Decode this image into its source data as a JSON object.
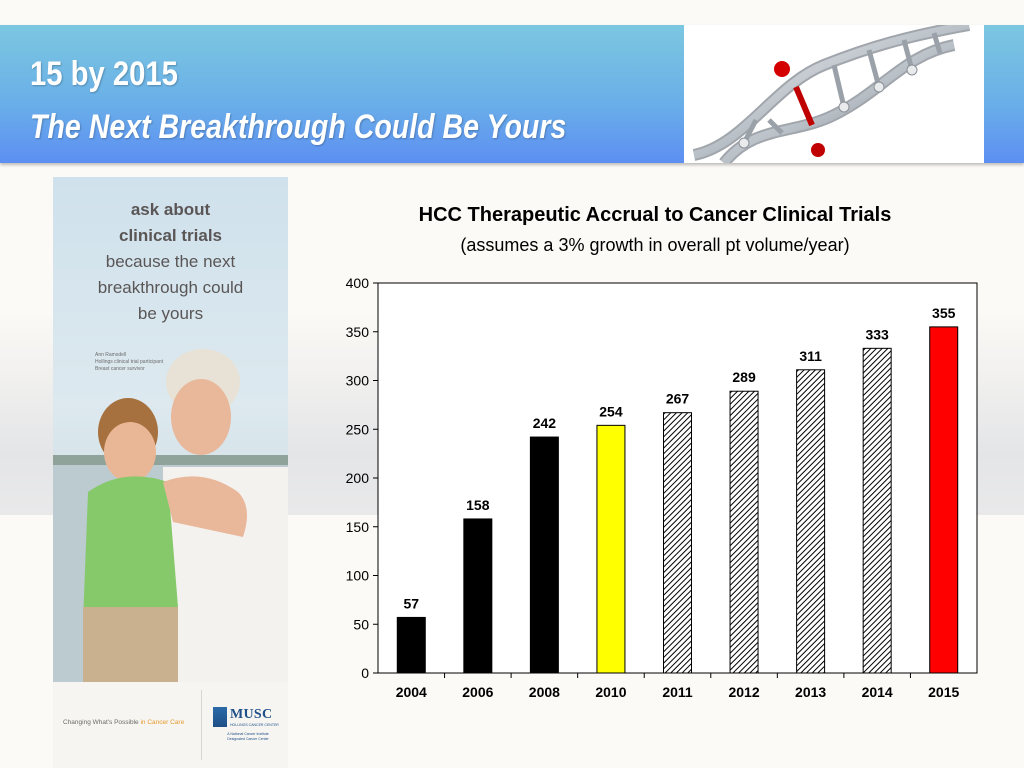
{
  "header": {
    "title": "15 by 2015",
    "subtitle": "The Next Breakthrough Could Be Yours"
  },
  "poster": {
    "headline_bold_1": "ask about",
    "headline_bold_2": "clinical trials",
    "headline_line_3": "because the next",
    "headline_line_4": "breakthrough could",
    "headline_line_5": "be yours",
    "caption_line_1": "Ann Ramsdell",
    "caption_line_2": "Hollings clinical trial participant",
    "caption_line_3": "Breast cancer survivor",
    "tagline_prefix": "Changing What's Possible",
    "tagline_accent": "in Cancer Care",
    "logo_name": "MUSC",
    "logo_subname": "HOLLINGS CANCER CENTER",
    "logo_note_1": "A National Cancer Institute",
    "logo_note_2": "Designated Cancer Center"
  },
  "colors": {
    "header_gradient_top": "#7cc7e0",
    "header_gradient_bottom": "#5d8ff2",
    "bar_actual": "#000000",
    "bar_current": "#ffff00",
    "bar_projected": "#e0e0e0",
    "bar_target": "#ff0000"
  },
  "chart_data": {
    "type": "bar",
    "title": "HCC Therapeutic Accrual to Cancer Clinical Trials",
    "subtitle": "(assumes a 3% growth in overall pt volume/year)",
    "xlabel": "",
    "ylabel": "",
    "categories": [
      "2004",
      "2006",
      "2008",
      "2010",
      "2011",
      "2012",
      "2013",
      "2014",
      "2015"
    ],
    "values": [
      57,
      158,
      242,
      254,
      267,
      289,
      311,
      333,
      355
    ],
    "data_labels": [
      "57",
      "158",
      "242",
      "254",
      "267",
      "289",
      "311",
      "333",
      "355"
    ],
    "bar_styles": [
      "black",
      "black",
      "black",
      "yellow",
      "hatched",
      "hatched",
      "hatched",
      "hatched",
      "red"
    ],
    "ylim": [
      0,
      400
    ],
    "yticks": [
      "0",
      "50",
      "100",
      "150",
      "200",
      "250",
      "300",
      "350",
      "400"
    ],
    "gridlines": false,
    "legend": "none"
  }
}
